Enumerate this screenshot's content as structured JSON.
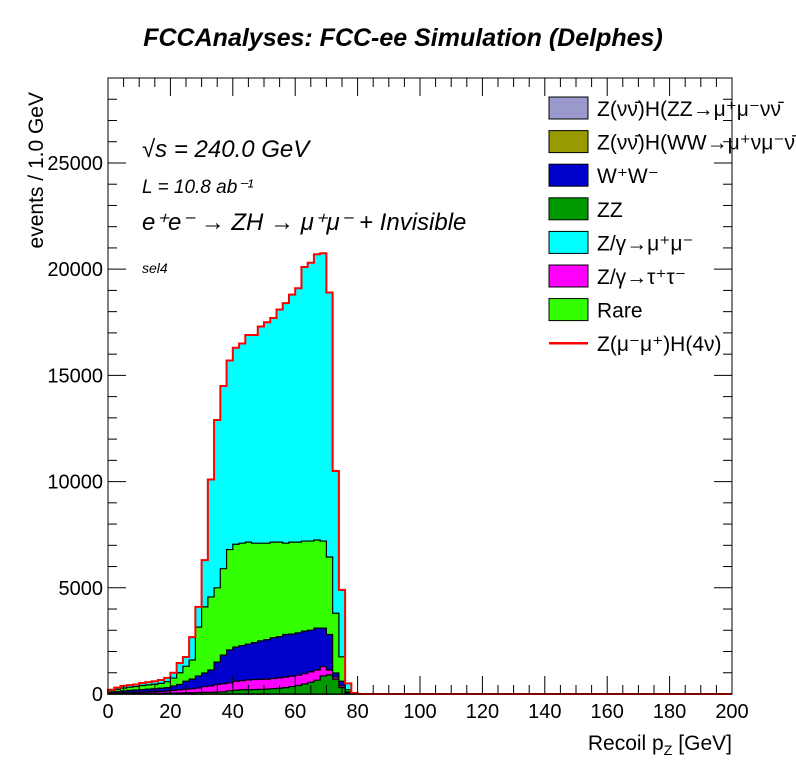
{
  "chart_data": {
    "type": "bar",
    "subtype": "stacked-histogram",
    "title": "FCCAnalyses: FCC-ee Simulation (Delphes)",
    "xlabel": "Recoil p_Z [GeV]",
    "xlabel_main": "Recoil p",
    "xlabel_sub": "Z",
    "xlabel_unit": "[GeV]",
    "ylabel": "events / 1.0 GeV",
    "xlim": [
      0,
      200
    ],
    "ylim": [
      0,
      29000
    ],
    "xticks": [
      0,
      20,
      40,
      60,
      80,
      100,
      120,
      140,
      160,
      180,
      200
    ],
    "yticks": [
      0,
      5000,
      10000,
      15000,
      20000,
      25000
    ],
    "grid": false,
    "legend_position": "top-right",
    "annotations": {
      "sqrt_s": "√s = 240.0 GeV",
      "lumi": "L = 10.8 ab⁻¹",
      "process": "e⁺e⁻ → ZH → μ⁺μ⁻ + Invisible",
      "selection": "sel4"
    },
    "bin_edges_start": [
      0,
      2,
      4,
      6,
      8,
      10,
      12,
      14,
      16,
      18,
      20,
      22,
      24,
      26,
      28,
      30,
      32,
      34,
      36,
      38,
      40,
      42,
      44,
      46,
      48,
      50,
      52,
      54,
      56,
      58,
      60,
      62,
      64,
      66,
      68,
      70,
      72,
      74,
      76,
      78
    ],
    "bin_width": 2,
    "series": [
      {
        "name": "Z(νν̄)H(ZZ→μ⁺μ⁻νν̄)",
        "color": "#9999cc",
        "values": [
          0,
          0,
          0,
          0,
          0,
          0,
          0,
          0,
          0,
          0,
          0,
          0,
          0,
          0,
          0,
          0,
          0,
          0,
          0,
          0,
          0,
          0,
          0,
          0,
          0,
          0,
          0,
          0,
          0,
          0,
          0,
          0,
          0,
          0,
          0,
          0,
          0,
          0,
          0,
          0
        ]
      },
      {
        "name": "Z(νν̄)H(WW→μ⁺νμ⁻ν̄)",
        "color": "#999900",
        "values": [
          0,
          0,
          0,
          0,
          0,
          0,
          0,
          0,
          0,
          0,
          0,
          0,
          0,
          0,
          0,
          0,
          0,
          0,
          0,
          0,
          0,
          0,
          0,
          0,
          0,
          0,
          0,
          0,
          0,
          0,
          0,
          0,
          0,
          0,
          0,
          0,
          0,
          0,
          0,
          0
        ]
      },
      {
        "name": "ZZ",
        "color": "#009900",
        "values": [
          10,
          15,
          20,
          20,
          25,
          25,
          30,
          30,
          35,
          40,
          45,
          50,
          55,
          60,
          70,
          75,
          80,
          90,
          100,
          150,
          180,
          200,
          200,
          210,
          220,
          230,
          250,
          270,
          300,
          350,
          400,
          470,
          550,
          650,
          850,
          900,
          700,
          300,
          40,
          0
        ]
      },
      {
        "name": "Z/γ→τ⁺τ⁻",
        "color": "#ff00ff",
        "values": [
          20,
          35,
          40,
          50,
          55,
          65,
          70,
          80,
          85,
          100,
          125,
          150,
          165,
          190,
          210,
          275,
          300,
          360,
          380,
          370,
          420,
          430,
          460,
          470,
          470,
          470,
          480,
          490,
          500,
          490,
          480,
          490,
          490,
          480,
          440,
          230,
          100,
          100,
          10,
          5
        ]
      },
      {
        "name": "W⁺W⁻",
        "color": "#0000cc",
        "values": [
          50,
          70,
          90,
          100,
          110,
          120,
          130,
          140,
          150,
          160,
          210,
          250,
          380,
          450,
          570,
          640,
          750,
          1050,
          1350,
          1550,
          1610,
          1650,
          1690,
          1740,
          1810,
          1860,
          1920,
          1940,
          2000,
          1980,
          2000,
          2000,
          1960,
          1970,
          1810,
          1670,
          190,
          200,
          50,
          5
        ]
      },
      {
        "name": "Rare",
        "color": "#33ff00",
        "values": [
          70,
          100,
          130,
          150,
          160,
          190,
          200,
          210,
          230,
          280,
          370,
          550,
          700,
          900,
          2300,
          3110,
          3440,
          3500,
          4070,
          4730,
          4840,
          4820,
          4800,
          4680,
          4600,
          4540,
          4500,
          4450,
          4300,
          4330,
          4270,
          4240,
          4200,
          4150,
          4100,
          3650,
          2810,
          1150,
          100,
          10
        ]
      },
      {
        "name": "Z/γ→μ⁺μ⁻",
        "color": "#00ffff",
        "values": [
          50,
          80,
          100,
          100,
          100,
          120,
          130,
          140,
          160,
          180,
          250,
          460,
          440,
          1080,
          950,
          2200,
          5530,
          7900,
          8600,
          8900,
          9250,
          9400,
          9750,
          9800,
          10200,
          10400,
          10550,
          10950,
          11300,
          11650,
          11950,
          12900,
          13100,
          13450,
          13550,
          12450,
          6700,
          3150,
          300,
          30
        ]
      }
    ],
    "signal": {
      "name": "Z(μ⁻μ⁺)H(4ν)",
      "color": "#ff0000",
      "style": "line"
    },
    "legend": [
      {
        "label": "Z(νν̄)H(ZZ→μ⁺μ⁻νν̄",
        "color": "#9999cc",
        "kind": "box"
      },
      {
        "label": "Z(νν̄)H(WW→μ⁺νμ⁻ν̄",
        "color": "#999900",
        "kind": "box"
      },
      {
        "label": "W⁺W⁻",
        "color": "#0000cc",
        "kind": "box"
      },
      {
        "label": "ZZ",
        "color": "#009900",
        "kind": "box"
      },
      {
        "label": "Z/γ→μ⁺μ⁻",
        "color": "#00ffff",
        "kind": "box"
      },
      {
        "label": "Z/γ→τ⁺τ⁻",
        "color": "#ff00ff",
        "kind": "box"
      },
      {
        "label": "Rare",
        "color": "#33ff00",
        "kind": "box"
      },
      {
        "label": "Z(μ⁻μ⁺)H(4ν)",
        "color": "#ff0000",
        "kind": "line"
      }
    ]
  }
}
